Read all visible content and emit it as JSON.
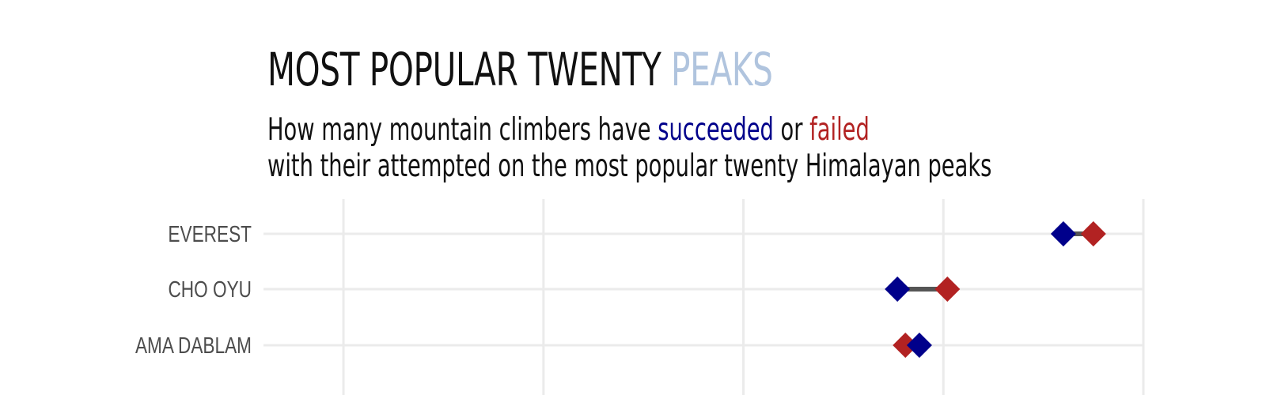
{
  "title": {
    "main": "MOST POPULAR TWENTY",
    "accent": "PEAKS"
  },
  "subtitle": {
    "line1_part1": "How many mountain climbers have ",
    "line1_succeeded": "succeeded",
    "line1_part2": " or ",
    "line1_failed": "failed",
    "line2": "with their attempted on the most popular twenty Himalayan peaks"
  },
  "colors": {
    "title_accent": "#b0c4de",
    "succeeded": "#00008b",
    "failed": "#b22222",
    "connector": "#555555",
    "grid": "#ebebeb",
    "label": "#4d4d4d"
  },
  "chart_data": {
    "type": "scatter",
    "orientation": "horizontal",
    "marker": "diamond",
    "categories": [
      "EVEREST",
      "CHO OYU",
      "AMA DABLAM"
    ],
    "series": [
      {
        "name": "succeeded",
        "values": [
          50,
          41.7,
          42.8
        ]
      },
      {
        "name": "failed",
        "values": [
          51.5,
          44.2,
          42.1
        ]
      }
    ],
    "xlim": [
      10,
      54
    ],
    "xgrid": [
      14,
      24,
      34,
      44,
      54
    ],
    "grid": true,
    "xlabel": "",
    "ylabel": ""
  }
}
